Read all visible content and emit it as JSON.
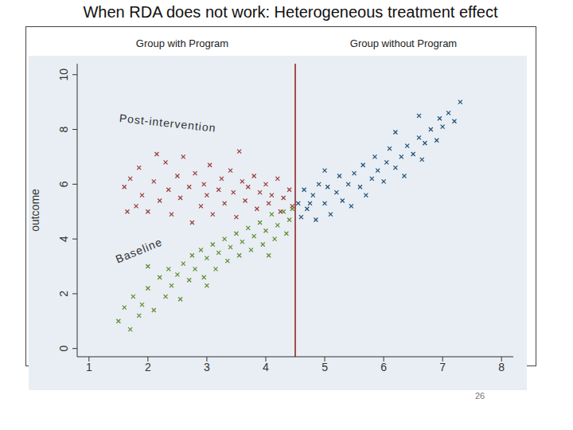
{
  "chart_data": {
    "type": "scatter",
    "title": "When RDA does not work: Heterogeneous treatment effect",
    "group_labels": [
      "Group with Program",
      "Group without Program"
    ],
    "ylabel": "outcome",
    "xlim": [
      0.8,
      8.2
    ],
    "ylim": [
      -0.3,
      10.4
    ],
    "xticks": [
      1,
      2,
      3,
      4,
      5,
      6,
      7,
      8
    ],
    "yticks": [
      0,
      2,
      4,
      6,
      8,
      10
    ],
    "cutoff": 4.5,
    "page_number": "26",
    "series": [
      {
        "name": "Post-intervention",
        "color": "#9b3a3a",
        "marker": "x",
        "x": [
          1.6,
          1.7,
          1.8,
          1.9,
          1.85,
          2.0,
          2.1,
          2.2,
          2.3,
          2.35,
          2.4,
          2.5,
          2.55,
          2.6,
          2.7,
          2.75,
          2.8,
          2.9,
          2.95,
          3.0,
          3.05,
          3.1,
          3.2,
          3.25,
          3.3,
          3.4,
          3.45,
          3.5,
          3.6,
          3.65,
          3.7,
          3.8,
          3.85,
          3.9,
          4.0,
          4.05,
          4.1,
          4.2,
          4.25,
          4.3,
          4.4,
          4.45,
          2.15,
          3.55,
          1.65
        ],
        "y": [
          5.9,
          6.2,
          5.2,
          5.6,
          6.6,
          5.0,
          6.1,
          5.4,
          6.8,
          5.8,
          4.9,
          6.3,
          5.5,
          7.0,
          5.9,
          4.6,
          6.4,
          5.2,
          6.0,
          5.6,
          6.7,
          4.9,
          5.8,
          6.2,
          5.3,
          6.5,
          5.7,
          4.8,
          6.1,
          5.4,
          5.9,
          6.3,
          5.1,
          5.7,
          6.0,
          5.3,
          5.6,
          6.2,
          5.0,
          5.5,
          5.8,
          5.2,
          7.1,
          7.2,
          5.0
        ]
      },
      {
        "name": "Baseline",
        "color": "#5e8a2e",
        "marker": "x",
        "x": [
          1.5,
          1.6,
          1.7,
          1.75,
          1.85,
          1.9,
          2.0,
          2.1,
          2.2,
          2.3,
          2.35,
          2.4,
          2.5,
          2.55,
          2.6,
          2.7,
          2.75,
          2.8,
          2.9,
          2.95,
          3.0,
          3.1,
          3.15,
          3.2,
          3.3,
          3.35,
          3.4,
          3.5,
          3.55,
          3.6,
          3.7,
          3.75,
          3.8,
          3.9,
          3.95,
          4.0,
          4.1,
          4.15,
          4.2,
          4.3,
          4.35,
          4.4,
          4.45,
          2.0,
          3.0,
          4.05
        ],
        "y": [
          1.0,
          1.5,
          0.7,
          1.9,
          1.2,
          1.6,
          2.2,
          1.4,
          2.6,
          1.9,
          2.9,
          2.3,
          2.7,
          1.8,
          3.1,
          2.5,
          3.4,
          2.9,
          3.6,
          2.6,
          3.3,
          3.8,
          2.9,
          3.5,
          4.0,
          3.2,
          3.7,
          4.2,
          3.4,
          3.9,
          4.4,
          3.6,
          4.1,
          4.6,
          3.8,
          4.3,
          4.9,
          4.0,
          4.5,
          5.0,
          4.2,
          4.7,
          5.1,
          3.0,
          2.3,
          3.4
        ]
      },
      {
        "color": "#1f4e79",
        "marker": "x",
        "x": [
          4.55,
          4.6,
          4.65,
          4.7,
          4.8,
          4.85,
          4.9,
          5.0,
          5.05,
          5.1,
          5.2,
          5.25,
          5.3,
          5.4,
          5.45,
          5.5,
          5.6,
          5.65,
          5.7,
          5.8,
          5.85,
          5.9,
          6.0,
          6.05,
          6.1,
          6.2,
          6.3,
          6.35,
          6.4,
          6.5,
          6.6,
          6.65,
          6.7,
          6.8,
          6.9,
          6.95,
          7.0,
          7.1,
          7.2,
          7.3,
          6.6,
          5.0,
          6.2,
          4.75
        ],
        "y": [
          5.3,
          4.8,
          5.8,
          5.1,
          5.6,
          4.7,
          6.0,
          5.3,
          5.9,
          4.9,
          5.7,
          6.3,
          5.4,
          6.0,
          5.2,
          6.4,
          5.9,
          6.7,
          5.6,
          6.2,
          7.0,
          6.5,
          6.1,
          6.8,
          7.3,
          6.6,
          7.0,
          6.3,
          7.4,
          7.1,
          7.7,
          6.9,
          7.5,
          8.0,
          7.6,
          8.4,
          8.1,
          8.6,
          8.3,
          9.0,
          8.5,
          6.5,
          7.9,
          5.3
        ]
      }
    ]
  }
}
